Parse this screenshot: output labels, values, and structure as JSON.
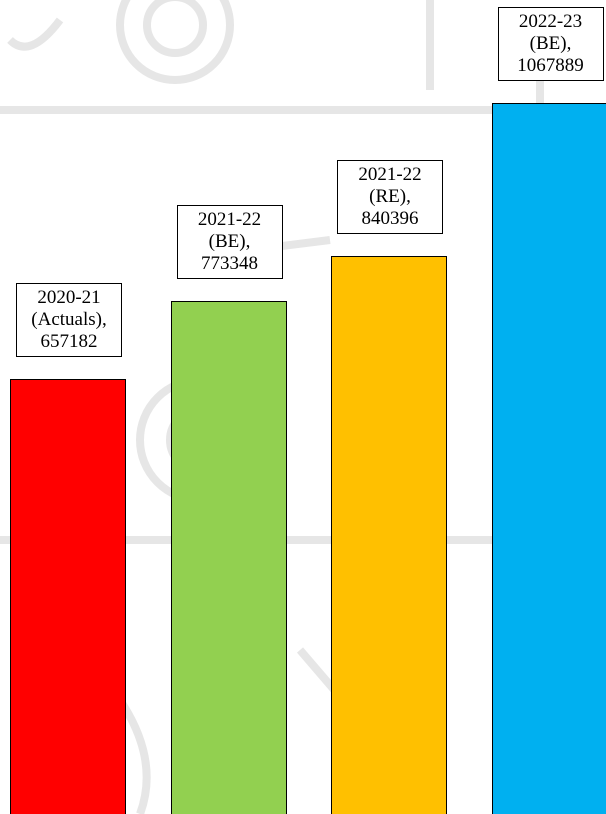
{
  "chart_data": {
    "type": "bar",
    "values": [
      657182,
      773348,
      840396,
      1067889
    ],
    "value_labels": [
      "2020-21\n(Actuals),\n657182",
      "2021-22\n(BE),\n773348",
      "2021-22\n(RE),\n840396",
      "2022-23\n(BE),\n1067889"
    ],
    "colors": [
      "#ff0000",
      "#92d050",
      "#ffc000",
      "#00b0f0"
    ]
  }
}
